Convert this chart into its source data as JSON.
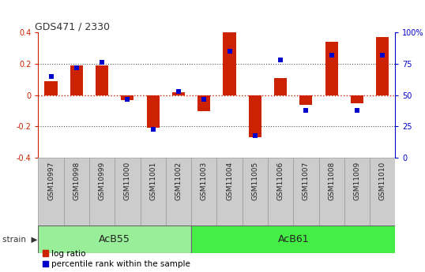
{
  "title": "GDS471 / 2330",
  "samples": [
    "GSM10997",
    "GSM10998",
    "GSM10999",
    "GSM11000",
    "GSM11001",
    "GSM11002",
    "GSM11003",
    "GSM11004",
    "GSM11005",
    "GSM11006",
    "GSM11007",
    "GSM11008",
    "GSM11009",
    "GSM11010"
  ],
  "log_ratio": [
    0.09,
    0.19,
    0.19,
    -0.03,
    -0.21,
    0.02,
    -0.1,
    0.4,
    -0.27,
    0.11,
    -0.06,
    0.34,
    -0.05,
    0.37
  ],
  "percentile_rank": [
    65,
    72,
    76,
    47,
    23,
    53,
    47,
    85,
    18,
    78,
    38,
    82,
    38,
    82
  ],
  "ylim": [
    -0.4,
    0.4
  ],
  "y2lim": [
    0,
    100
  ],
  "y_ticks": [
    -0.4,
    -0.2,
    0.0,
    0.2,
    0.4
  ],
  "y2_ticks": [
    0,
    25,
    50,
    75,
    100
  ],
  "bar_color": "#cc2200",
  "dot_color": "#0000cc",
  "bar_width": 0.5,
  "groups": [
    {
      "label": "AcB55",
      "start": 0,
      "end": 5,
      "color": "#99ee99"
    },
    {
      "label": "AcB61",
      "start": 6,
      "end": 13,
      "color": "#44ee44"
    }
  ],
  "bg_color": "#ffffff",
  "plot_bg_color": "#ffffff",
  "tick_label_color_left": "#cc2200",
  "tick_label_color_right": "#0000cc",
  "zero_line_color": "#cc2200",
  "legend_items": [
    "log ratio",
    "percentile rank within the sample"
  ],
  "sample_box_color": "#cccccc",
  "sample_box_edge": "#999999"
}
